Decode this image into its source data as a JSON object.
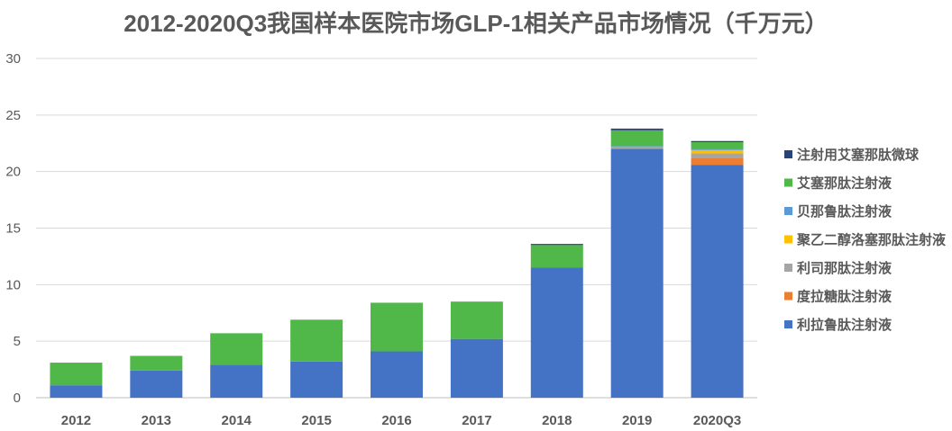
{
  "chart_data": {
    "type": "bar",
    "stacked": true,
    "title": "2012-2020Q3我国样本医院市场GLP-1相关产品市场情况（千万元）",
    "xlabel": "",
    "ylabel": "",
    "ylim": [
      0,
      30
    ],
    "yticks": [
      0,
      5,
      10,
      15,
      20,
      25,
      30
    ],
    "grid": true,
    "legend_position": "right",
    "categories": [
      "2012",
      "2013",
      "2014",
      "2015",
      "2016",
      "2017",
      "2018",
      "2019",
      "2020Q3"
    ],
    "series": [
      {
        "name": "利拉鲁肽注射液",
        "color": "#4472C4",
        "values": [
          1.1,
          2.4,
          2.9,
          3.2,
          4.1,
          5.2,
          11.5,
          22.0,
          20.6
        ]
      },
      {
        "name": "度拉糖肽注射液",
        "color": "#ED7D31",
        "values": [
          0,
          0,
          0,
          0,
          0,
          0,
          0,
          0,
          0.6
        ]
      },
      {
        "name": "利司那肽注射液",
        "color": "#A5A5A5",
        "values": [
          0,
          0,
          0,
          0,
          0,
          0,
          0,
          0.2,
          0.4
        ]
      },
      {
        "name": "聚乙二醇洛塞那肽注射液",
        "color": "#FFC000",
        "values": [
          0,
          0,
          0,
          0,
          0,
          0,
          0,
          0,
          0.3
        ]
      },
      {
        "name": "贝那鲁肽注射液",
        "color": "#5B9BD5",
        "values": [
          0,
          0,
          0,
          0,
          0,
          0,
          0,
          0.05,
          0.1
        ]
      },
      {
        "name": "艾塞那肽注射液",
        "color": "#50B848",
        "values": [
          2.0,
          1.3,
          2.8,
          3.7,
          4.3,
          3.3,
          2.0,
          1.4,
          0.6
        ]
      },
      {
        "name": "注射用艾塞那肽微球",
        "color": "#264478",
        "values": [
          0,
          0,
          0,
          0,
          0,
          0,
          0.1,
          0.15,
          0.1
        ]
      }
    ],
    "legend_order": [
      "注射用艾塞那肽微球",
      "艾塞那肽注射液",
      "贝那鲁肽注射液",
      "聚乙二醇洛塞那肽注射液",
      "利司那肽注射液",
      "度拉糖肽注射液",
      "利拉鲁肽注射液"
    ]
  }
}
